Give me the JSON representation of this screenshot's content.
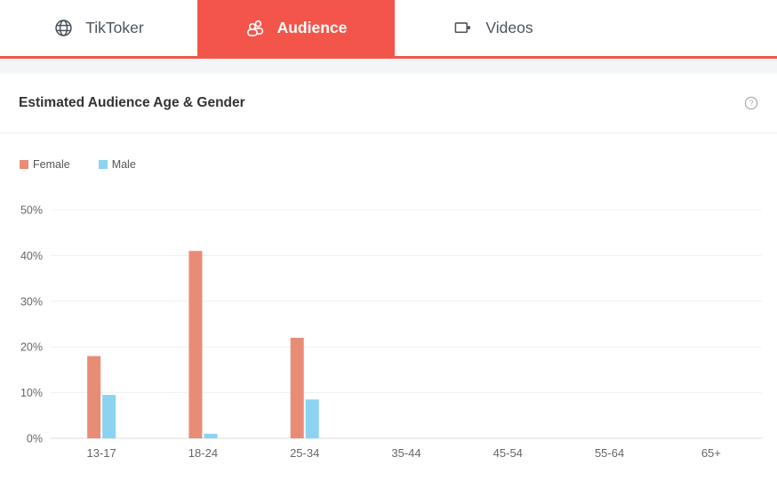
{
  "tabs": [
    {
      "label": "TikToker",
      "icon": "globe-icon",
      "active": false
    },
    {
      "label": "Audience",
      "icon": "people-icon",
      "active": true
    },
    {
      "label": "Videos",
      "icon": "video-camera-icon",
      "active": false
    }
  ],
  "panel": {
    "title": "Estimated Audience Age & Gender",
    "help_icon": "question-circle-icon"
  },
  "legend": [
    {
      "label": "Female",
      "color": "#e98c76"
    },
    {
      "label": "Male",
      "color": "#8bd3f0"
    }
  ],
  "colors": {
    "accent": "#f3554a",
    "female_bar": "#e98c76",
    "male_bar": "#8bd3f0",
    "gridline": "#f0f0f0",
    "axis_line": "#dcdcdc",
    "tick_text": "#666666",
    "strip_bg": "#f4f5f7"
  },
  "chart_data": {
    "type": "bar",
    "title": "Estimated Audience Age & Gender",
    "categories": [
      "13-17",
      "18-24",
      "25-34",
      "35-44",
      "45-54",
      "55-64",
      "65+"
    ],
    "series": [
      {
        "name": "Female",
        "color": "#e98c76",
        "values": [
          18,
          41,
          22,
          0,
          0,
          0,
          0
        ]
      },
      {
        "name": "Male",
        "color": "#8bd3f0",
        "values": [
          9.5,
          1,
          8.5,
          0,
          0,
          0,
          0
        ]
      }
    ],
    "xlabel": "",
    "ylabel": "",
    "ylim": [
      0,
      50
    ],
    "y_ticks": [
      "0%",
      "10%",
      "20%",
      "30%",
      "40%",
      "50%"
    ],
    "grid": true,
    "legend_position": "top-left"
  }
}
